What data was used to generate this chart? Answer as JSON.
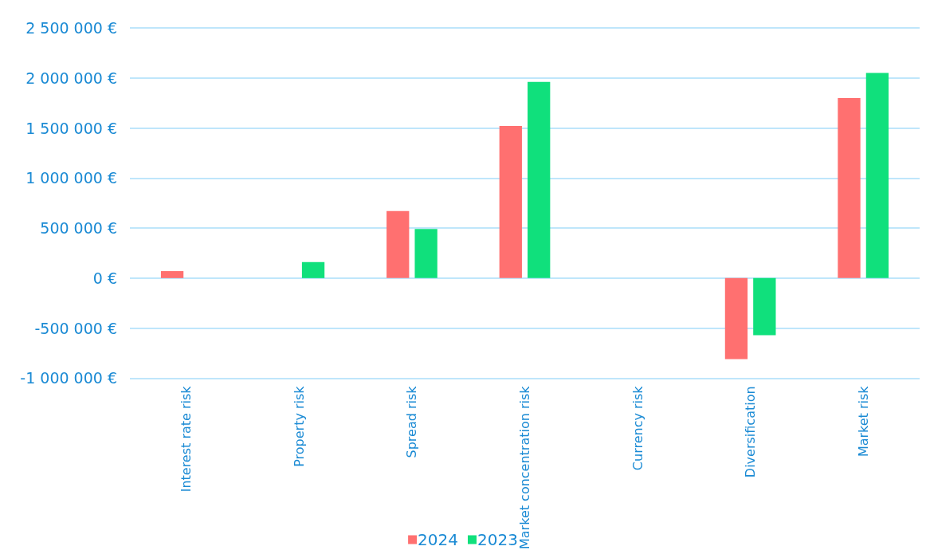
{
  "chart_data": {
    "type": "bar",
    "categories": [
      "Interest rate risk",
      "Property risk",
      "Spread risk",
      "Market concentration risk",
      "Currency risk",
      "Diversification",
      "Market risk"
    ],
    "series": [
      {
        "name": "2024",
        "color": "#ff7070",
        "values": [
          70000,
          0,
          670000,
          1520000,
          0,
          -810000,
          1800000
        ]
      },
      {
        "name": "2023",
        "color": "#10e07c",
        "values": [
          0,
          160000,
          490000,
          1960000,
          0,
          -570000,
          2050000
        ]
      }
    ],
    "ylim": [
      -1000000,
      2500000
    ],
    "yticks": [
      {
        "value": -1000000,
        "label": "-1 000 000 €"
      },
      {
        "value": -500000,
        "label": "-500 000 €"
      },
      {
        "value": 0,
        "label": "0 €"
      },
      {
        "value": 500000,
        "label": "500 000 €"
      },
      {
        "value": 1000000,
        "label": "1 000 000 €"
      },
      {
        "value": 1500000,
        "label": "1 500 000 €"
      },
      {
        "value": 2000000,
        "label": "2 000 000 €"
      },
      {
        "value": 2500000,
        "label": "2 500 000 €"
      }
    ],
    "grid": "y",
    "legend": "bottom"
  }
}
